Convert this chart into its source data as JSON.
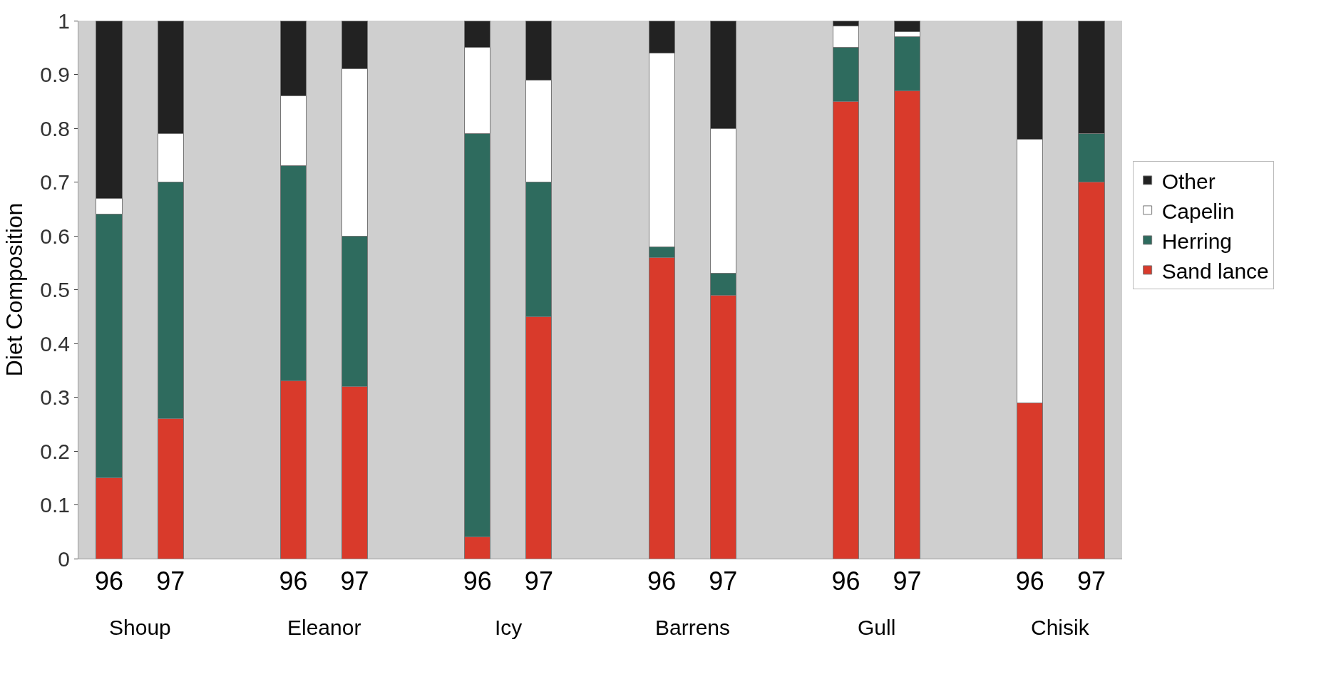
{
  "chart_data": {
    "type": "bar",
    "stacked": true,
    "ylabel": "Diet Composition",
    "categories": [
      "96",
      "97",
      null,
      "96",
      "97",
      null,
      "96",
      "97",
      null,
      "96",
      "97",
      null,
      "96",
      "97",
      null,
      "96",
      "97"
    ],
    "series": [
      {
        "name": "Sand lance",
        "color": "#d93a2b",
        "values": [
          0.15,
          0.26,
          null,
          0.33,
          0.32,
          null,
          0.04,
          0.45,
          null,
          0.56,
          0.49,
          null,
          0.85,
          0.87,
          null,
          0.29,
          0.7
        ]
      },
      {
        "name": "Herring",
        "color": "#2e6b5e",
        "values": [
          0.49,
          0.44,
          null,
          0.4,
          0.28,
          null,
          0.75,
          0.25,
          null,
          0.02,
          0.04,
          null,
          0.1,
          0.1,
          null,
          0.0,
          0.09
        ]
      },
      {
        "name": "Capelin",
        "color": "#ffffff",
        "values": [
          0.03,
          0.09,
          null,
          0.13,
          0.31,
          null,
          0.16,
          0.19,
          null,
          0.36,
          0.27,
          null,
          0.04,
          0.01,
          null,
          0.49,
          0.0
        ]
      },
      {
        "name": "Other",
        "color": "#222222",
        "values": [
          0.33,
          0.21,
          null,
          0.14,
          0.09,
          null,
          0.05,
          0.11,
          null,
          0.06,
          0.2,
          null,
          0.01,
          0.02,
          null,
          0.22,
          0.21
        ]
      }
    ],
    "annotations": [
      "Shoup",
      "Eleanor",
      "Icy",
      "Barrens",
      "Gull",
      "Chisik"
    ],
    "ylim": [
      0,
      1
    ],
    "yticks": [
      0,
      0.1,
      0.2,
      0.3,
      0.4,
      0.5,
      0.6,
      0.7,
      0.8,
      0.9,
      1
    ],
    "grid": false,
    "legend": "right"
  }
}
